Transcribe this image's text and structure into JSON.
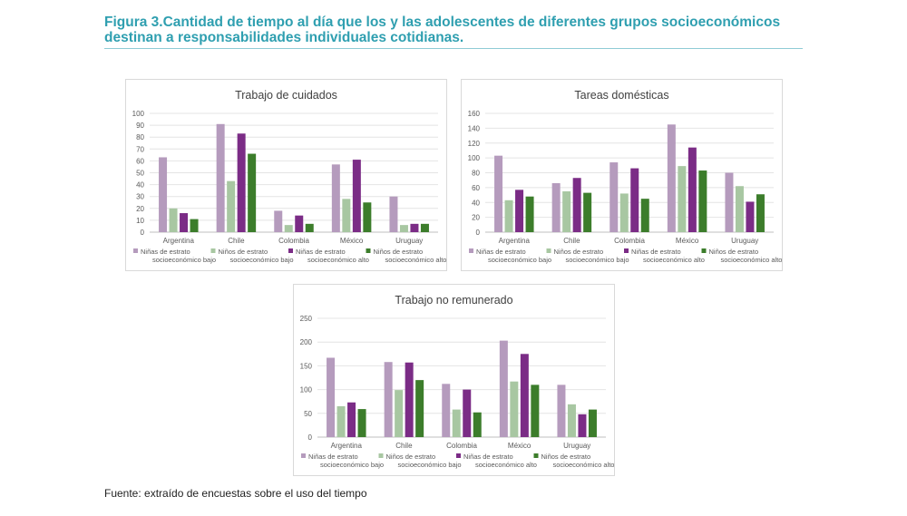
{
  "figure": {
    "label": "Figura 3.",
    "title": "Cantidad de tiempo al día que los y las adolescentes de diferentes grupos socioeconómicos destinan a responsabilidades individuales cotidianas."
  },
  "source": "Fuente: extraído de encuestas sobre el uso del tiempo",
  "colors": {
    "ninas_bajo": "#b59bbd",
    "ninos_bajo": "#a8c7a2",
    "ninas_alto": "#7b2c86",
    "ninos_alto": "#3c7d2b"
  },
  "chart_data": [
    {
      "type": "bar",
      "title": "Trabajo de cuidados",
      "categories": [
        "Argentina",
        "Chile",
        "Colombia",
        "México",
        "Uruguay"
      ],
      "ylim": [
        0,
        100
      ],
      "yticks": [
        0,
        10,
        20,
        30,
        40,
        50,
        60,
        70,
        80,
        90,
        100
      ],
      "grid": true,
      "legend_position": "bottom",
      "series": [
        {
          "name": "Niñas de estrato socioeconómico bajo",
          "values": [
            63,
            91,
            18,
            57,
            30
          ]
        },
        {
          "name": "Niños de estrato socioeconómico bajo",
          "values": [
            20,
            43,
            6,
            28,
            6
          ]
        },
        {
          "name": "Niñas de estrato socioeconómico alto",
          "values": [
            16,
            83,
            14,
            61,
            7
          ]
        },
        {
          "name": "Niños de estrato socioeconómico alto",
          "values": [
            11,
            66,
            7,
            25,
            7
          ]
        }
      ]
    },
    {
      "type": "bar",
      "title": "Tareas domésticas",
      "categories": [
        "Argentina",
        "Chile",
        "Colombia",
        "México",
        "Uruguay"
      ],
      "ylim": [
        0,
        160
      ],
      "yticks": [
        0,
        20,
        40,
        60,
        80,
        100,
        120,
        140,
        160
      ],
      "grid": true,
      "legend_position": "bottom",
      "series": [
        {
          "name": "Niñas de estrato socioeconómico bajo",
          "values": [
            103,
            66,
            94,
            145,
            80
          ]
        },
        {
          "name": "Niños de estrato socioeconómico bajo",
          "values": [
            43,
            55,
            52,
            89,
            62
          ]
        },
        {
          "name": "Niñas de estrato socioeconómico alto",
          "values": [
            57,
            73,
            86,
            114,
            41
          ]
        },
        {
          "name": "Niños de estrato socioeconómico alto",
          "values": [
            48,
            53,
            45,
            83,
            51
          ]
        }
      ]
    },
    {
      "type": "bar",
      "title": "Trabajo no remunerado",
      "categories": [
        "Argentina",
        "Chile",
        "Colombia",
        "México",
        "Uruguay"
      ],
      "ylim": [
        0,
        250
      ],
      "yticks": [
        0,
        50,
        100,
        150,
        200,
        250
      ],
      "grid": true,
      "legend_position": "bottom",
      "series": [
        {
          "name": "Niñas de estrato socioeconómico bajo",
          "values": [
            167,
            158,
            112,
            203,
            110
          ]
        },
        {
          "name": "Niños de estrato socioeconómico bajo",
          "values": [
            65,
            99,
            58,
            117,
            69
          ]
        },
        {
          "name": "Niñas de estrato socioeconómico alto",
          "values": [
            73,
            157,
            100,
            175,
            48
          ]
        },
        {
          "name": "Niños de estrato socioeconómico alto",
          "values": [
            59,
            120,
            52,
            110,
            58
          ]
        }
      ]
    }
  ]
}
